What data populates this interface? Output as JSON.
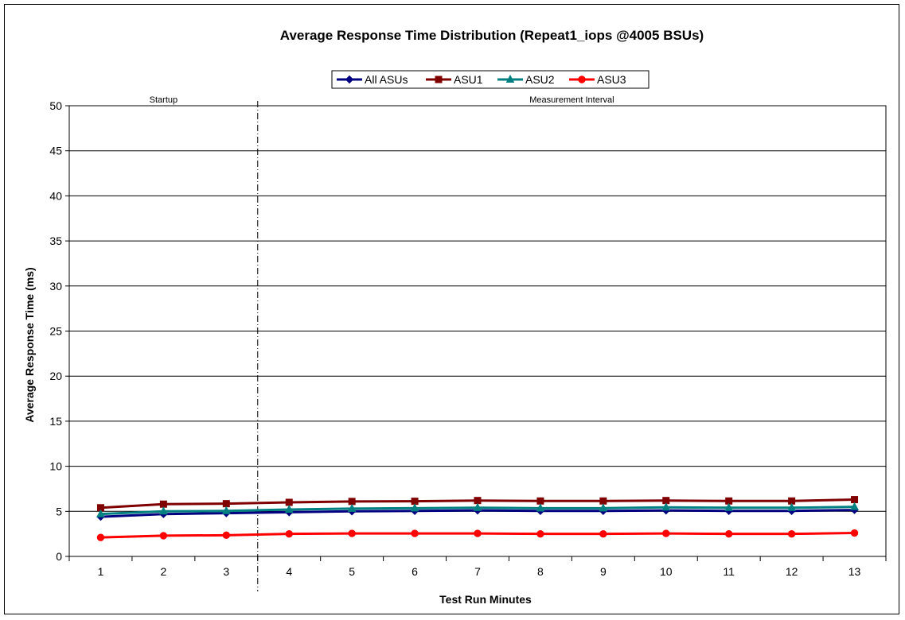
{
  "chart_data": {
    "type": "line",
    "title": "Average Response Time Distribution (Repeat1_iops @4005 BSUs)",
    "xlabel": "Test Run Minutes",
    "ylabel": "Average Response Time (ms)",
    "x": [
      1,
      2,
      3,
      4,
      5,
      6,
      7,
      8,
      9,
      10,
      11,
      12,
      13
    ],
    "ylim": [
      0,
      50
    ],
    "yticks": [
      0,
      5,
      10,
      15,
      20,
      25,
      30,
      35,
      40,
      45,
      50
    ],
    "grid": true,
    "legend_position": "top-center",
    "series": [
      {
        "name": "All ASUs",
        "color": "#000080",
        "marker": "diamond",
        "values": [
          4.4,
          4.7,
          4.8,
          4.9,
          5.0,
          5.05,
          5.1,
          5.05,
          5.05,
          5.1,
          5.05,
          5.05,
          5.15
        ]
      },
      {
        "name": "ASU1",
        "color": "#800000",
        "marker": "square",
        "values": [
          5.4,
          5.8,
          5.85,
          6.0,
          6.1,
          6.12,
          6.2,
          6.15,
          6.15,
          6.2,
          6.15,
          6.15,
          6.3
        ]
      },
      {
        "name": "ASU2",
        "color": "#008080",
        "marker": "triangle",
        "values": [
          4.7,
          5.0,
          5.05,
          5.2,
          5.3,
          5.35,
          5.4,
          5.35,
          5.35,
          5.45,
          5.4,
          5.4,
          5.5
        ]
      },
      {
        "name": "ASU3",
        "color": "#ff0000",
        "marker": "circle",
        "values": [
          2.1,
          2.3,
          2.35,
          2.5,
          2.55,
          2.55,
          2.55,
          2.5,
          2.5,
          2.55,
          2.5,
          2.5,
          2.6
        ]
      }
    ],
    "annotations": {
      "startup_label": "Startup",
      "measurement_label": "Measurement Interval",
      "divider_after_x": 3
    }
  }
}
